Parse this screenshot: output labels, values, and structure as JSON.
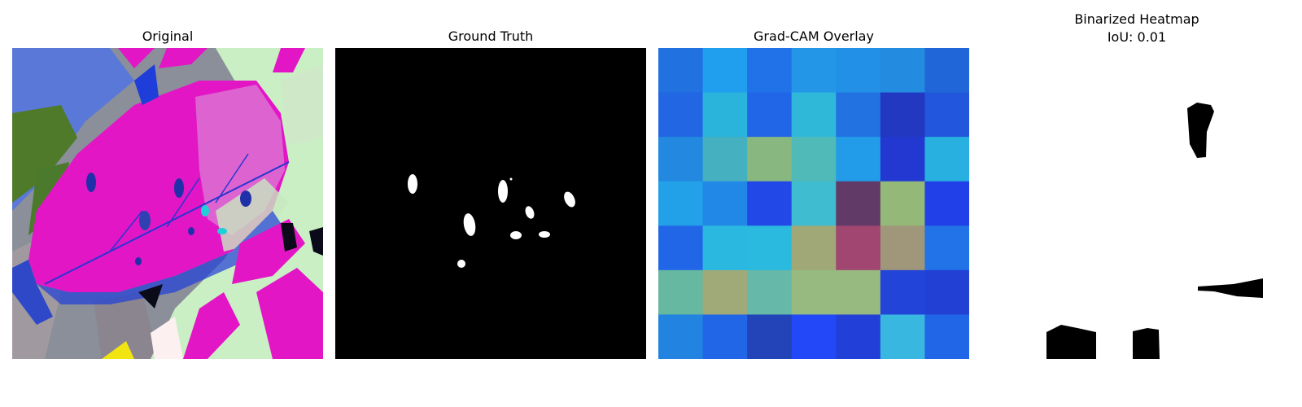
{
  "panels": {
    "original": {
      "title": "Original"
    },
    "ground_truth": {
      "title": "Ground Truth"
    },
    "overlay": {
      "title": "Grad-CAM Overlay"
    },
    "binarized": {
      "title_line1": "Binarized Heatmap",
      "title_line2": "IoU: 0.01"
    }
  },
  "overlay_grid": [
    [
      "#2171e0",
      "#1f9fee",
      "#2171e8",
      "#2396e8",
      "#2390e8",
      "#238ce0",
      "#2166d8"
    ],
    [
      "#2266e4",
      "#2ab4dc",
      "#2266e8",
      "#30b8d8",
      "#2272e2",
      "#2238c0",
      "#2256dc"
    ],
    [
      "#2288e0",
      "#44b0c0",
      "#88b880",
      "#50bab8",
      "#229ce8",
      "#2238d0",
      "#28b0e0"
    ],
    [
      "#22a0e8",
      "#2288e8",
      "#2248e8",
      "#40bcd0",
      "#623a68",
      "#94b878",
      "#2240e8"
    ],
    [
      "#2266e8",
      "#2ab8e0",
      "#2abae0",
      "#a0a878",
      "#a04670",
      "#a0967a",
      "#2272e8"
    ],
    [
      "#66b8a0",
      "#a0aa78",
      "#66b8a8",
      "#96ba80",
      "#96ba80",
      "#2244d8",
      "#2240d4"
    ],
    [
      "#2284e0",
      "#2266e8",
      "#2244b8",
      "#2248f8",
      "#2240d8",
      "#38b8e0",
      "#2266e8"
    ]
  ]
}
